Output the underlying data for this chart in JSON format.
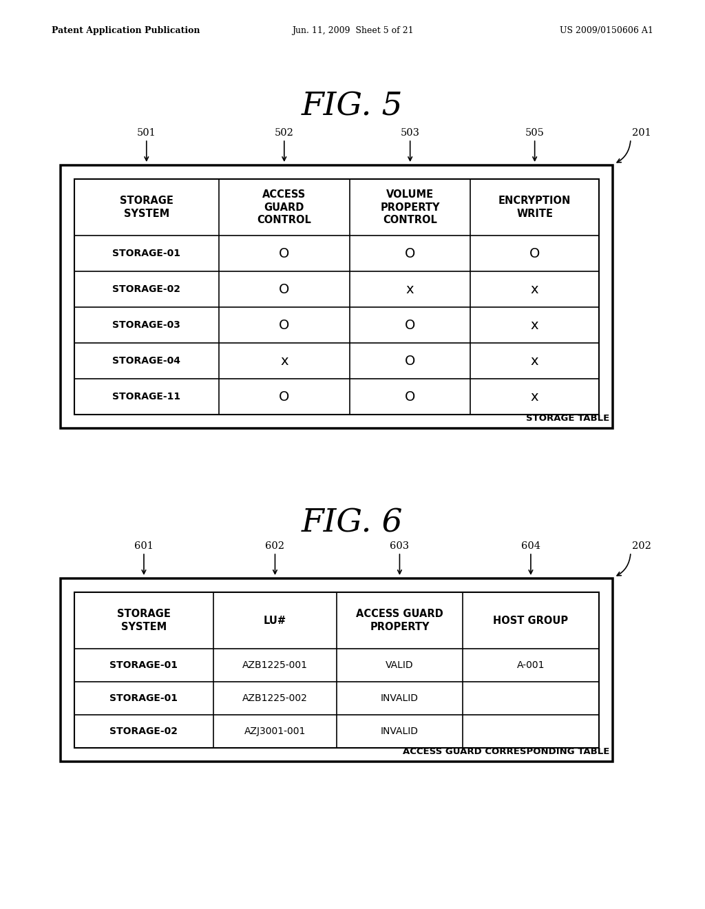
{
  "background_color": "#ffffff",
  "header_text_left": "Patent Application Publication",
  "header_text_mid": "Jun. 11, 2009  Sheet 5 of 21",
  "header_text_right": "US 2009/0150606 A1",
  "fig5_title": "FIG. 5",
  "fig5_ref_label": "201",
  "fig5_table_label": "STORAGE TABLE",
  "fig5_col_ids": [
    "501",
    "502",
    "503",
    "505"
  ],
  "fig5_headers": [
    "STORAGE\nSYSTEM",
    "ACCESS\nGUARD\nCONTROL",
    "VOLUME\nPROPERTY\nCONTROL",
    "ENCRYPTION\nWRITE"
  ],
  "fig5_rows": [
    [
      "STORAGE-01",
      "O",
      "O",
      "O"
    ],
    [
      "STORAGE-02",
      "O",
      "x",
      "x"
    ],
    [
      "STORAGE-03",
      "O",
      "O",
      "x"
    ],
    [
      "STORAGE-04",
      "x",
      "O",
      "x"
    ],
    [
      "STORAGE-11",
      "O",
      "O",
      "x"
    ]
  ],
  "fig6_title": "FIG. 6",
  "fig6_ref_label": "202",
  "fig6_table_label": "ACCESS GUARD CORRESPONDING TABLE",
  "fig6_col_ids": [
    "601",
    "602",
    "603",
    "604"
  ],
  "fig6_headers": [
    "STORAGE\nSYSTEM",
    "LU#",
    "ACCESS GUARD\nPROPERTY",
    "HOST GROUP"
  ],
  "fig6_rows": [
    [
      "STORAGE-01",
      "AZB1225-001",
      "VALID",
      "A-001"
    ],
    [
      "STORAGE-01",
      "AZB1225-002",
      "INVALID",
      ""
    ],
    [
      "STORAGE-02",
      "AZJ3001-001",
      "INVALID",
      ""
    ]
  ]
}
